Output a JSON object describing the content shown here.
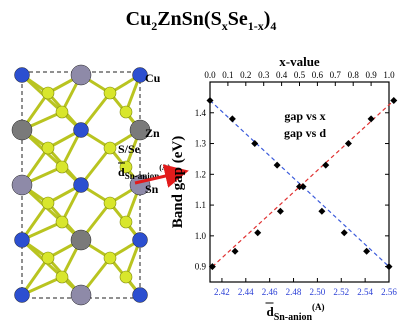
{
  "figure": {
    "title_parts": {
      "a": "Cu",
      "a_sub": "2",
      "b": "ZnSn(S",
      "b_sub": "x",
      "c": "Se",
      "c_sub": "1-x",
      "d": ")",
      "d_sub": "4"
    }
  },
  "structure": {
    "labels": {
      "cu": "Cu",
      "zn": "Zn",
      "sse": "S/Se",
      "sn": "Sn",
      "dist": "d",
      "dist_sub": "Sn-anion",
      "dist_sup": "(A)"
    },
    "colors": {
      "cu": "#2c4fd0",
      "zn": "#7a7a7a",
      "sn": "#8e8aa8",
      "s": "#d8e62c",
      "arrow": "#e21b1b"
    }
  },
  "chart_data": {
    "type": "scatter",
    "top_axis": {
      "label": "x-value",
      "range": [
        0.0,
        1.0
      ],
      "ticks": [
        "0.0",
        "0.1",
        "0.2",
        "0.3",
        "0.4",
        "0.5",
        "0.6",
        "0.7",
        "0.8",
        "0.9",
        "1.0"
      ],
      "color": "#000000"
    },
    "bottom_axis": {
      "label_main": "d",
      "label_sub": "Sn-anion",
      "label_sup": "(A)",
      "range": [
        2.41,
        2.56
      ],
      "ticks": [
        "2.42",
        "2.44",
        "2.46",
        "2.48",
        "2.50",
        "2.52",
        "2.54",
        "2.56"
      ],
      "tick_values": [
        2.42,
        2.44,
        2.46,
        2.48,
        2.5,
        2.52,
        2.54,
        2.56
      ],
      "color": "#2a3fd6"
    },
    "y_axis": {
      "label": "Band gap (eV)",
      "range": [
        0.85,
        1.5
      ],
      "ticks": [
        "0.9",
        "1.0",
        "1.1",
        "1.2",
        "1.3",
        "1.4"
      ],
      "tick_values": [
        0.9,
        1.0,
        1.1,
        1.2,
        1.3,
        1.4
      ]
    },
    "series": [
      {
        "name": "gap vs x",
        "axis": "top",
        "line_color": "#3b5bdb",
        "x": [
          0.0,
          0.125,
          0.25,
          0.375,
          0.5,
          0.625,
          0.75,
          0.875,
          1.0
        ],
        "y": [
          1.44,
          1.38,
          1.3,
          1.23,
          1.16,
          1.08,
          1.01,
          0.95,
          0.9
        ]
      },
      {
        "name": "gap vs d",
        "axis": "bottom",
        "line_color": "#e03131",
        "x": [
          2.412,
          2.431,
          2.45,
          2.469,
          2.488,
          2.507,
          2.526,
          2.545,
          2.564
        ],
        "y": [
          0.9,
          0.95,
          1.01,
          1.08,
          1.16,
          1.23,
          1.3,
          1.38,
          1.44
        ]
      }
    ],
    "legend": [
      "gap vs x",
      "gap vs d"
    ],
    "legend_position": "top-right",
    "grid": false
  }
}
